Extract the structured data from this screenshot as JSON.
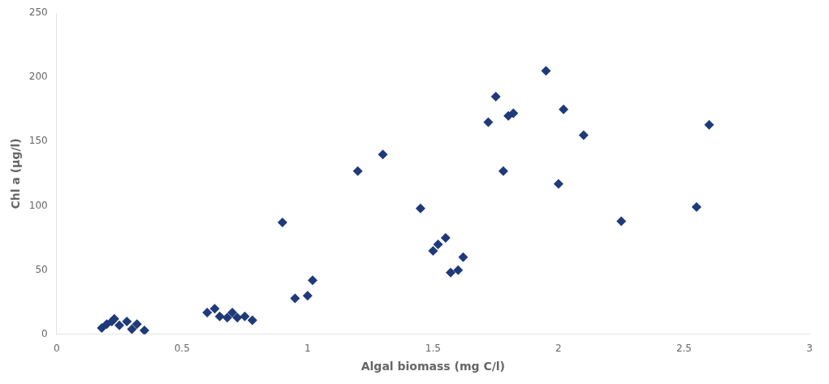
{
  "chart_data": {
    "type": "scatter",
    "x": [
      0.18,
      0.2,
      0.22,
      0.23,
      0.25,
      0.28,
      0.3,
      0.32,
      0.35,
      0.6,
      0.63,
      0.65,
      0.68,
      0.7,
      0.72,
      0.75,
      0.78,
      0.9,
      0.95,
      1.0,
      1.02,
      1.2,
      1.3,
      1.45,
      1.5,
      1.52,
      1.55,
      1.57,
      1.6,
      1.62,
      1.72,
      1.75,
      1.78,
      1.8,
      1.82,
      1.95,
      2.0,
      2.02,
      2.1,
      2.25,
      2.55,
      2.6
    ],
    "values": [
      5,
      8,
      10,
      12,
      7,
      10,
      4,
      8,
      3,
      17,
      20,
      14,
      13,
      17,
      13,
      14,
      11,
      87,
      28,
      30,
      42,
      127,
      140,
      98,
      65,
      70,
      75,
      48,
      50,
      60,
      165,
      185,
      127,
      170,
      172,
      205,
      117,
      175,
      155,
      88,
      99,
      163
    ],
    "color": "#1F3A7A",
    "marker": "diamond",
    "xlabel": "Algal biomass (mg C/l)",
    "ylabel": "Chl a (μg/l)",
    "xlim": [
      0,
      3
    ],
    "ylim": [
      0,
      250
    ],
    "xticks": [
      0,
      0.5,
      1,
      1.5,
      2,
      2.5,
      3
    ],
    "yticks": [
      0,
      50,
      100,
      150,
      200,
      250
    ],
    "grid": false
  }
}
